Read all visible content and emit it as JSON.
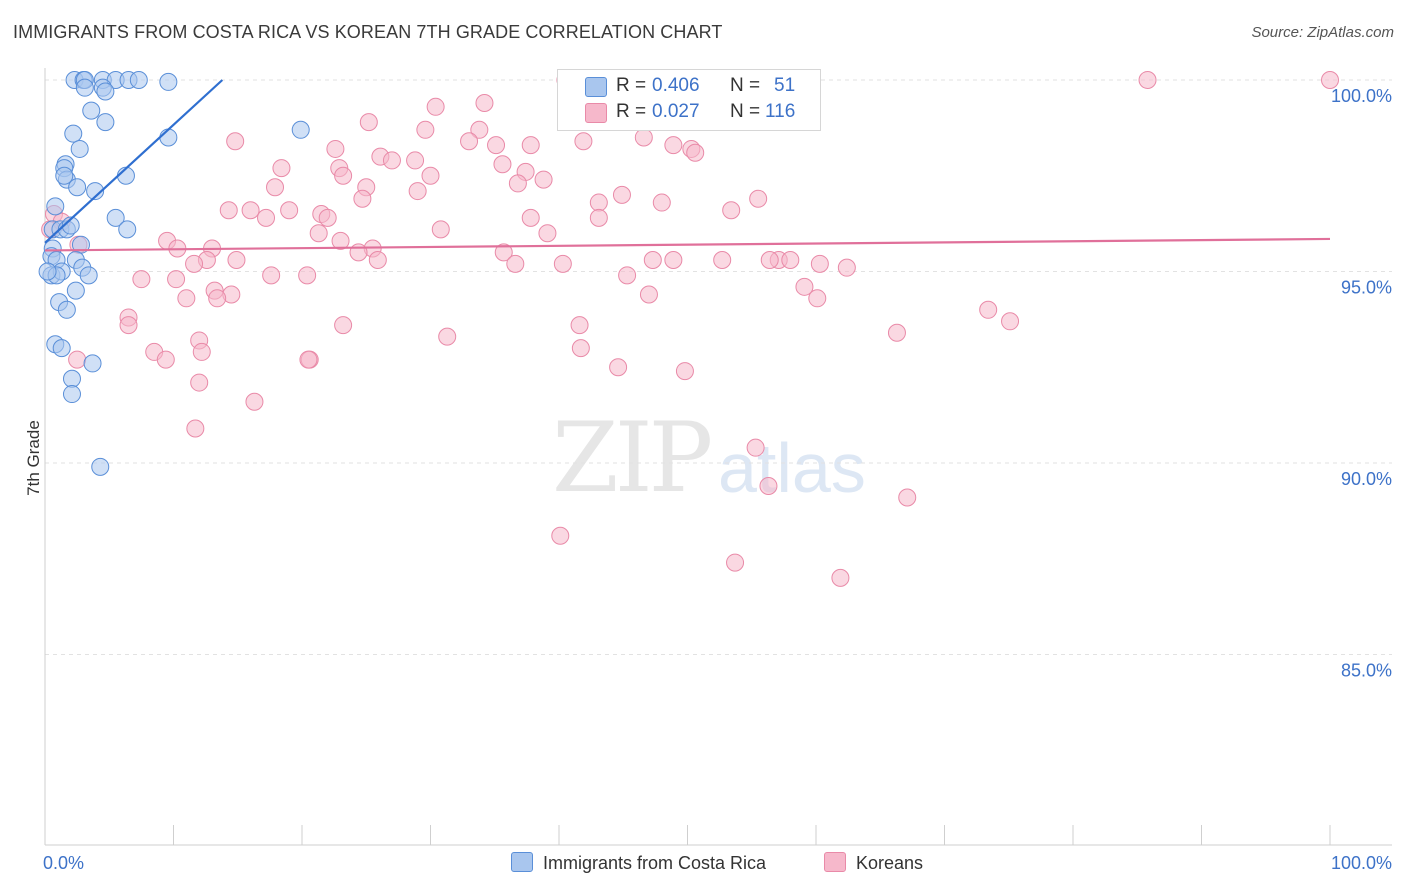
{
  "title": "IMMIGRANTS FROM COSTA RICA VS KOREAN 7TH GRADE CORRELATION CHART",
  "source": "Source: ZipAtlas.com",
  "watermark": {
    "zip": "ZIP",
    "atlas": "atlas"
  },
  "colors": {
    "blue_fill": "#a9c6ee",
    "blue_stroke": "#5a8fd8",
    "blue_line": "#2f6fd0",
    "pink_fill": "#f6b8cb",
    "pink_stroke": "#e98aa8",
    "pink_line": "#e0709a",
    "axis_text": "#3d72c8"
  },
  "legend": {
    "rows": [
      {
        "r_label": "R =",
        "r_value": "0.406",
        "n_label": "N =",
        "n_value": "51"
      },
      {
        "r_label": "R =",
        "r_value": "0.027",
        "n_label": "N =",
        "n_value": "116"
      }
    ]
  },
  "bottom_legend": {
    "series1": "Immigrants from Costa Rica",
    "series2": "Koreans"
  },
  "chart_data": {
    "type": "scatter",
    "title": "IMMIGRANTS FROM COSTA RICA VS KOREAN 7TH GRADE CORRELATION CHART",
    "xlabel": "",
    "ylabel": "7th Grade",
    "xlim": [
      0,
      100
    ],
    "ylim": [
      80.5,
      100.5
    ],
    "x_tick_labels": [
      "0.0%",
      "100.0%"
    ],
    "y_ticks": [
      85,
      90,
      95,
      100
    ],
    "y_tick_labels": [
      "85.0%",
      "90.0%",
      "95.0%",
      "100.0%"
    ],
    "series": [
      {
        "name": "Immigrants from Costa Rica",
        "R": 0.406,
        "N": 51,
        "trend": {
          "x": [
            0,
            13.8
          ],
          "y": [
            95.75,
            100.0
          ]
        },
        "points": [
          [
            2.3,
            100
          ],
          [
            3.0,
            100
          ],
          [
            3.1,
            100
          ],
          [
            4.5,
            100
          ],
          [
            5.5,
            100
          ],
          [
            6.5,
            100
          ],
          [
            7.3,
            100
          ],
          [
            9.6,
            99.95
          ],
          [
            3.1,
            99.8
          ],
          [
            4.5,
            99.8
          ],
          [
            4.7,
            99.7
          ],
          [
            3.6,
            99.2
          ],
          [
            4.7,
            98.9
          ],
          [
            2.2,
            98.6
          ],
          [
            9.6,
            98.5
          ],
          [
            2.7,
            98.2
          ],
          [
            19.9,
            98.7
          ],
          [
            1.6,
            97.8
          ],
          [
            1.5,
            97.7
          ],
          [
            6.3,
            97.5
          ],
          [
            1.7,
            97.4
          ],
          [
            1.5,
            97.5
          ],
          [
            2.5,
            97.2
          ],
          [
            3.9,
            97.1
          ],
          [
            0.8,
            96.7
          ],
          [
            5.5,
            96.4
          ],
          [
            6.4,
            96.1
          ],
          [
            0.6,
            96.1
          ],
          [
            1.2,
            96.1
          ],
          [
            1.7,
            96.1
          ],
          [
            2.0,
            96.2
          ],
          [
            0.6,
            95.6
          ],
          [
            2.8,
            95.7
          ],
          [
            0.5,
            95.4
          ],
          [
            0.9,
            95.3
          ],
          [
            2.4,
            95.3
          ],
          [
            2.9,
            95.1
          ],
          [
            0.5,
            94.9
          ],
          [
            1.3,
            95.0
          ],
          [
            3.4,
            94.9
          ],
          [
            0.9,
            94.9
          ],
          [
            0.2,
            95.0
          ],
          [
            2.4,
            94.5
          ],
          [
            1.1,
            94.2
          ],
          [
            1.7,
            94.0
          ],
          [
            0.8,
            93.1
          ],
          [
            1.3,
            93.0
          ],
          [
            3.7,
            92.6
          ],
          [
            2.1,
            92.2
          ],
          [
            2.1,
            91.8
          ],
          [
            4.3,
            89.9
          ]
        ]
      },
      {
        "name": "Koreans",
        "R": 0.027,
        "N": 116,
        "trend": {
          "x": [
            0,
            100
          ],
          "y": [
            95.55,
            95.85
          ]
        },
        "points": [
          [
            40.5,
            100.0
          ],
          [
            49.3,
            100.0
          ],
          [
            85.8,
            100.0
          ],
          [
            100.0,
            100.0
          ],
          [
            30.4,
            99.3
          ],
          [
            34.2,
            99.4
          ],
          [
            50.1,
            99.1
          ],
          [
            44.9,
            99.0
          ],
          [
            25.2,
            98.9
          ],
          [
            29.6,
            98.7
          ],
          [
            33.8,
            98.7
          ],
          [
            46.6,
            98.5
          ],
          [
            33.0,
            98.4
          ],
          [
            35.1,
            98.3
          ],
          [
            48.9,
            98.3
          ],
          [
            41.9,
            98.4
          ],
          [
            37.8,
            98.3
          ],
          [
            50.3,
            98.2
          ],
          [
            50.6,
            98.1
          ],
          [
            14.8,
            98.4
          ],
          [
            22.6,
            98.2
          ],
          [
            26.1,
            98.0
          ],
          [
            27.0,
            97.9
          ],
          [
            28.8,
            97.9
          ],
          [
            35.6,
            97.8
          ],
          [
            22.9,
            97.7
          ],
          [
            23.2,
            97.5
          ],
          [
            30.0,
            97.5
          ],
          [
            37.4,
            97.6
          ],
          [
            36.8,
            97.3
          ],
          [
            38.8,
            97.4
          ],
          [
            18.4,
            97.7
          ],
          [
            25.0,
            97.2
          ],
          [
            24.7,
            96.9
          ],
          [
            29.0,
            97.1
          ],
          [
            17.9,
            97.2
          ],
          [
            44.9,
            97.0
          ],
          [
            55.5,
            96.9
          ],
          [
            43.1,
            96.8
          ],
          [
            48.0,
            96.8
          ],
          [
            14.3,
            96.6
          ],
          [
            16.0,
            96.6
          ],
          [
            19.0,
            96.6
          ],
          [
            21.5,
            96.5
          ],
          [
            22.0,
            96.4
          ],
          [
            37.8,
            96.4
          ],
          [
            43.1,
            96.4
          ],
          [
            53.4,
            96.6
          ],
          [
            30.8,
            96.1
          ],
          [
            39.1,
            96.0
          ],
          [
            21.3,
            96.0
          ],
          [
            17.2,
            96.4
          ],
          [
            23.0,
            95.8
          ],
          [
            25.5,
            95.6
          ],
          [
            24.4,
            95.5
          ],
          [
            25.9,
            95.3
          ],
          [
            13.0,
            95.6
          ],
          [
            9.5,
            95.8
          ],
          [
            10.3,
            95.6
          ],
          [
            14.9,
            95.3
          ],
          [
            35.7,
            95.5
          ],
          [
            36.6,
            95.2
          ],
          [
            40.3,
            95.2
          ],
          [
            47.3,
            95.3
          ],
          [
            52.7,
            95.3
          ],
          [
            57.1,
            95.3
          ],
          [
            58.0,
            95.3
          ],
          [
            60.3,
            95.2
          ],
          [
            48.9,
            95.3
          ],
          [
            56.4,
            95.3
          ],
          [
            62.4,
            95.1
          ],
          [
            12.6,
            95.3
          ],
          [
            11.6,
            95.2
          ],
          [
            7.5,
            94.8
          ],
          [
            10.2,
            94.8
          ],
          [
            17.6,
            94.9
          ],
          [
            20.4,
            94.9
          ],
          [
            45.3,
            94.9
          ],
          [
            47.0,
            94.4
          ],
          [
            59.1,
            94.6
          ],
          [
            60.1,
            94.3
          ],
          [
            11.0,
            94.3
          ],
          [
            14.5,
            94.4
          ],
          [
            13.2,
            94.5
          ],
          [
            13.4,
            94.3
          ],
          [
            6.5,
            93.8
          ],
          [
            6.5,
            93.6
          ],
          [
            23.2,
            93.6
          ],
          [
            31.3,
            93.3
          ],
          [
            41.6,
            93.6
          ],
          [
            41.7,
            93.0
          ],
          [
            66.3,
            93.4
          ],
          [
            73.4,
            94.0
          ],
          [
            75.1,
            93.7
          ],
          [
            20.6,
            92.7
          ],
          [
            8.5,
            92.9
          ],
          [
            9.4,
            92.7
          ],
          [
            12.0,
            93.2
          ],
          [
            12.2,
            92.9
          ],
          [
            2.5,
            92.7
          ],
          [
            20.5,
            92.7
          ],
          [
            44.6,
            92.5
          ],
          [
            49.8,
            92.4
          ],
          [
            12.0,
            92.1
          ],
          [
            16.3,
            91.6
          ],
          [
            11.7,
            90.9
          ],
          [
            55.3,
            90.4
          ],
          [
            56.3,
            89.4
          ],
          [
            67.1,
            89.1
          ],
          [
            40.1,
            88.1
          ],
          [
            53.7,
            87.4
          ],
          [
            61.9,
            87.0
          ],
          [
            0.7,
            96.5
          ],
          [
            1.3,
            96.3
          ],
          [
            0.4,
            96.1
          ],
          [
            2.6,
            95.7
          ]
        ]
      }
    ]
  }
}
